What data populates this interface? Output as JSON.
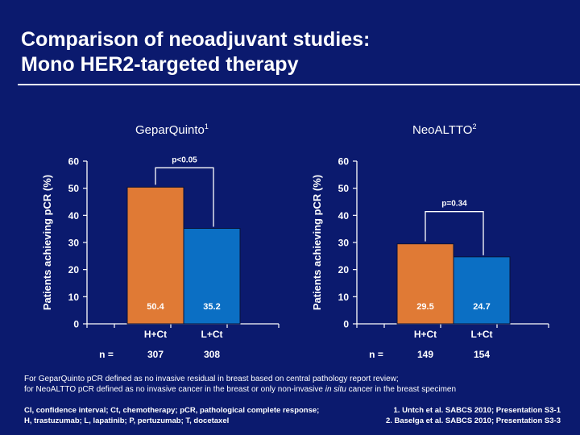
{
  "slide": {
    "title_line1": "Comparison of neoadjuvant studies:",
    "title_line2": "Mono HER2-targeted therapy"
  },
  "chart_data": [
    {
      "type": "bar",
      "title": "GeparQuinto",
      "title_sup": "1",
      "ylabel": "Patients achieving pCR (%)",
      "ylim": [
        0,
        60
      ],
      "yticks": [
        0,
        10,
        20,
        30,
        40,
        50,
        60
      ],
      "categories": [
        "H+Ct",
        "L+Ct"
      ],
      "values": [
        50.4,
        35.2
      ],
      "value_labels": [
        "50.4",
        "35.2"
      ],
      "n_label": "n =",
      "n": [
        "307",
        "308"
      ],
      "significance": "p<0.05",
      "colors": [
        "#e07a35",
        "#0b6fc4"
      ]
    },
    {
      "type": "bar",
      "title": "NeoALTTO",
      "title_sup": "2",
      "ylabel": "Patients achieving pCR (%)",
      "ylim": [
        0,
        60
      ],
      "yticks": [
        0,
        10,
        20,
        30,
        40,
        50,
        60
      ],
      "categories": [
        "H+Ct",
        "L+Ct"
      ],
      "values": [
        29.5,
        24.7
      ],
      "value_labels": [
        "29.5",
        "24.7"
      ],
      "n_label": "n =",
      "n": [
        "149",
        "154"
      ],
      "significance": "p=0.34",
      "colors": [
        "#e07a35",
        "#0b6fc4"
      ]
    }
  ],
  "footnote": {
    "line1": "For GeparQuinto pCR defined as no invasive residual in breast based on central pathology report review;",
    "line2_pre": "for NeoALTTO pCR defined as no invasive cancer in the breast or only non-invasive ",
    "line2_italic": "in situ",
    "line2_post": " cancer in the breast specimen"
  },
  "abbreviations": {
    "line1": "CI, confidence interval; Ct, chemotherapy; pCR, pathological complete response;",
    "line2": "H, trastuzumab; L, lapatinib; P, pertuzumab; T, docetaxel"
  },
  "references": {
    "line1": "1. Untch et al. SABCS 2010; Presentation S3-1",
    "line2": "2. Baselga et al. SABCS 2010; Presentation S3-3"
  }
}
